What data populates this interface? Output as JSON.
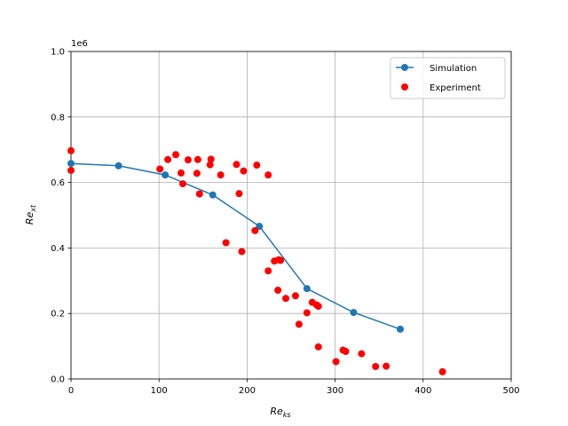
{
  "chart_data": {
    "type": "scatter",
    "title": "",
    "xlabel_main": "Re",
    "xlabel_sub": "ks",
    "ylabel_main": "Re",
    "ylabel_sub": "xt",
    "y_scale_label": "1e6",
    "xlim": [
      0,
      500
    ],
    "ylim": [
      0,
      1.0
    ],
    "x_ticks": [
      0,
      100,
      200,
      300,
      400,
      500
    ],
    "y_ticks": [
      0.0,
      0.2,
      0.4,
      0.6,
      0.8,
      1.0
    ],
    "x_tick_labels": [
      "0",
      "100",
      "200",
      "300",
      "400",
      "500"
    ],
    "y_tick_labels": [
      "0.0",
      "0.2",
      "0.4",
      "0.6",
      "0.8",
      "1.0"
    ],
    "grid": true,
    "legend_position": "top-right",
    "series": [
      {
        "name": "Simulation",
        "kind": "line-marker",
        "color": "#1f77b4",
        "x": [
          0,
          54,
          107,
          161,
          214,
          268,
          321,
          374
        ],
        "y": [
          0.658,
          0.651,
          0.623,
          0.562,
          0.466,
          0.276,
          0.203,
          0.152
        ]
      },
      {
        "name": "Experiment",
        "kind": "scatter",
        "color": "#ff0000",
        "x": [
          0,
          0,
          101,
          110,
          119,
          125,
          127,
          133,
          143,
          144,
          146,
          158,
          159,
          170,
          176,
          188,
          191,
          194,
          196,
          209,
          211,
          224,
          224,
          231,
          235,
          236,
          238,
          244,
          255,
          259,
          268,
          274,
          279,
          281,
          281,
          301,
          309,
          312,
          330,
          346,
          358,
          422
        ],
        "y": [
          0.697,
          0.637,
          0.641,
          0.67,
          0.685,
          0.629,
          0.596,
          0.669,
          0.628,
          0.67,
          0.565,
          0.654,
          0.671,
          0.623,
          0.416,
          0.655,
          0.566,
          0.389,
          0.635,
          0.453,
          0.653,
          0.623,
          0.33,
          0.36,
          0.271,
          0.364,
          0.362,
          0.246,
          0.254,
          0.167,
          0.202,
          0.234,
          0.226,
          0.222,
          0.098,
          0.053,
          0.088,
          0.084,
          0.077,
          0.038,
          0.039,
          0.022
        ]
      }
    ]
  }
}
